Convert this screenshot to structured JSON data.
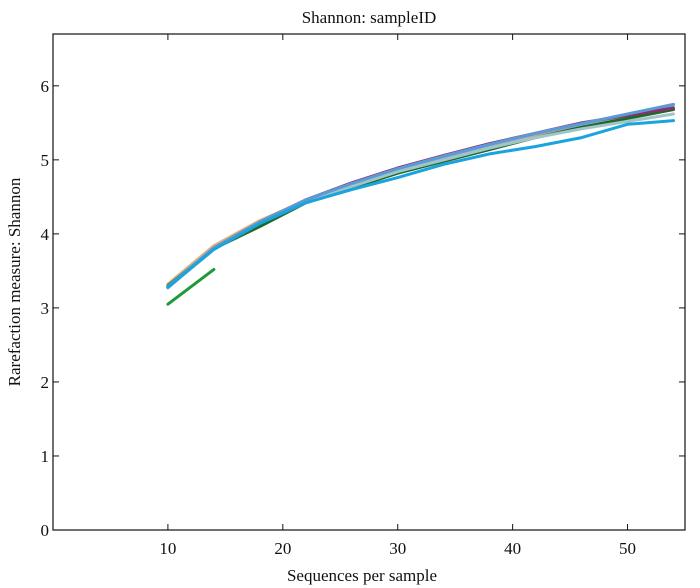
{
  "chart_data": {
    "type": "line",
    "title": "Shannon: sampleID",
    "xlabel": "Sequences per sample",
    "ylabel": "Rarefaction measure: Shannon",
    "xlim": [
      0,
      55
    ],
    "ylim": [
      0,
      6.7
    ],
    "xticks": [
      10,
      20,
      30,
      40,
      50
    ],
    "yticks": [
      0,
      1,
      2,
      3,
      4,
      5,
      6
    ],
    "grid": false,
    "series": [
      {
        "color": "#e3b27a",
        "x": [
          10,
          14,
          18,
          22,
          26,
          30,
          34,
          38,
          42,
          46,
          50,
          54
        ],
        "y": [
          3.32,
          3.84,
          4.18,
          4.45,
          4.66,
          4.85,
          5.02,
          5.17,
          5.32,
          5.46,
          5.58,
          5.7
        ]
      },
      {
        "color": "#8fa5cf",
        "x": [
          10,
          14,
          18,
          22,
          26,
          30,
          34,
          38,
          42,
          46,
          50,
          54
        ],
        "y": [
          3.27,
          3.8,
          4.14,
          4.45,
          4.67,
          4.87,
          5.04,
          5.2,
          5.35,
          5.48,
          5.61,
          5.74
        ]
      },
      {
        "color": "#1a6a2c",
        "x": [
          10,
          14,
          18,
          22,
          26,
          30,
          34,
          38,
          42,
          46,
          50,
          54
        ],
        "y": [
          3.3,
          3.8,
          4.1,
          4.42,
          4.62,
          4.82,
          4.98,
          5.14,
          5.3,
          5.44,
          5.56,
          5.68
        ]
      },
      {
        "color": "#9fc5c9",
        "x": [
          10,
          14,
          18,
          22,
          26,
          30,
          34,
          38,
          42,
          46,
          50,
          54
        ],
        "y": [
          3.28,
          3.79,
          4.15,
          4.44,
          4.64,
          4.84,
          5.0,
          5.16,
          5.3,
          5.42,
          5.52,
          5.62
        ]
      },
      {
        "color": "#8a2e6e",
        "x": [
          10,
          14,
          18,
          22,
          26,
          30,
          34,
          38,
          42,
          46,
          50,
          54
        ],
        "y": [
          3.28,
          3.81,
          4.16,
          4.46,
          4.69,
          4.89,
          5.06,
          5.22,
          5.36,
          5.5,
          5.6,
          5.7
        ]
      },
      {
        "color": "#5b9bd5",
        "x": [
          10,
          14,
          18,
          22,
          26,
          30,
          34,
          38,
          42,
          46,
          50,
          54
        ],
        "y": [
          3.29,
          3.81,
          4.16,
          4.46,
          4.68,
          4.88,
          5.05,
          5.21,
          5.36,
          5.49,
          5.62,
          5.75
        ]
      },
      {
        "color": "#1aa3dd",
        "x": [
          10,
          14,
          18,
          22,
          26,
          30,
          34,
          38,
          42,
          46,
          50,
          54
        ],
        "y": [
          3.28,
          3.79,
          4.14,
          4.42,
          4.6,
          4.76,
          4.94,
          5.08,
          5.18,
          5.3,
          5.48,
          5.53
        ]
      },
      {
        "color": "#1f9a3a",
        "x": [
          10,
          14
        ],
        "y": [
          3.05,
          3.52
        ]
      }
    ]
  }
}
